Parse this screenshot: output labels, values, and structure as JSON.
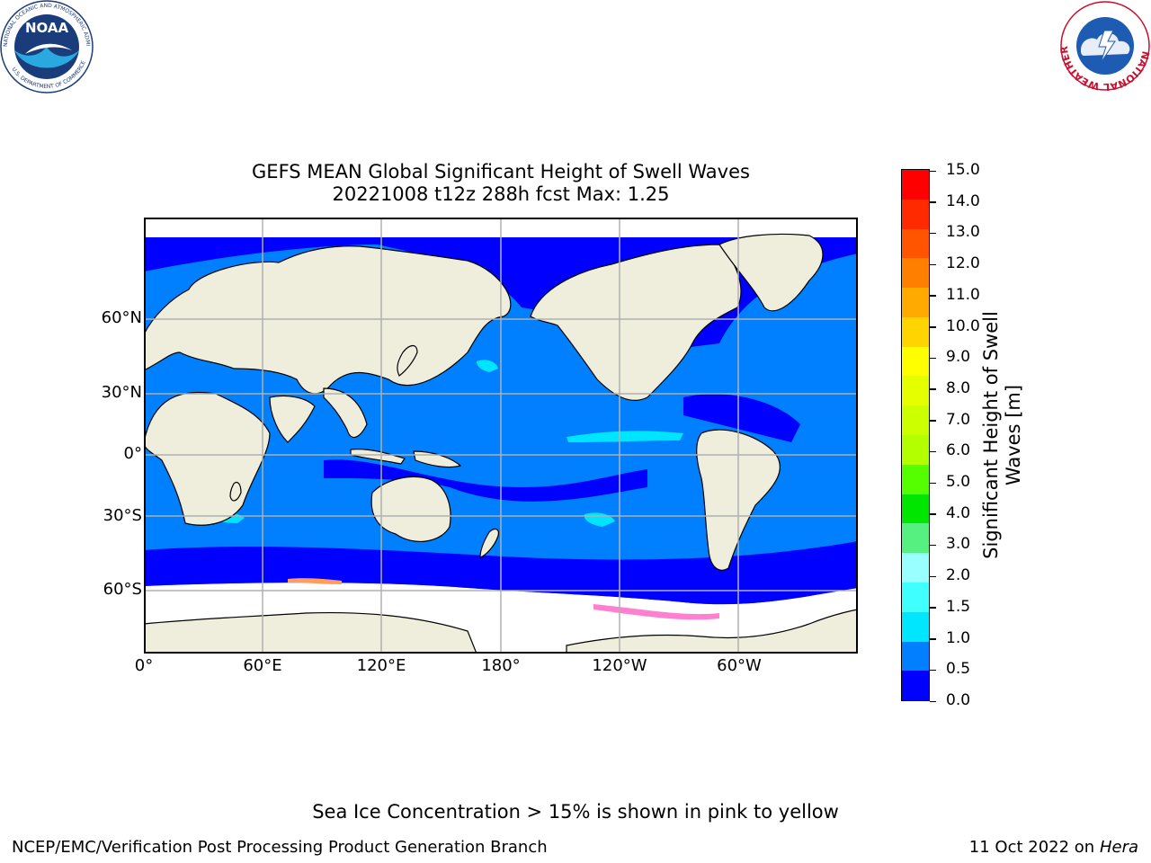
{
  "header": {
    "title_line1": "GEFS MEAN Global Significant Height of Swell Waves",
    "title_line2": "20221008 t12z 288h fcst   Max: 1.25"
  },
  "logos": {
    "noaa": {
      "ring_text": "NATIONAL OCEANIC AND ATMOSPHERIC ADMINISTRATION",
      "bottom_text": "U.S. DEPARTMENT OF COMMERCE",
      "center_text": "NOAA"
    },
    "nws": {
      "ring_text": "NATIONAL WEATHER SERVICE"
    }
  },
  "map": {
    "lat_ticks": [
      "60°N",
      "30°N",
      "0°",
      "30°S",
      "60°S"
    ],
    "lon_ticks": [
      "0°",
      "60°E",
      "120°E",
      "180°",
      "120°W",
      "60°W"
    ],
    "colors": {
      "land": "#efeedd",
      "ocean_low": "#0000ff",
      "ocean_mid": "#0080ff",
      "ocean_high": "#00e5ff",
      "ice": "#ff7fd0",
      "grid": "#b0b0b0"
    }
  },
  "colorbar": {
    "label_line1": "Significant Height of Swell",
    "label_line2": "Waves [m]",
    "ticks": [
      "15.0",
      "14.0",
      "13.0",
      "12.0",
      "11.0",
      "10.0",
      "9.0",
      "8.0",
      "7.0",
      "6.0",
      "5.0",
      "4.0",
      "3.0",
      "2.0",
      "1.5",
      "1.0",
      "0.5",
      "0.0"
    ],
    "bands_top_to_bottom": [
      "#ff0000",
      "#ff2a00",
      "#ff5500",
      "#ff8000",
      "#ffaa00",
      "#ffd400",
      "#ffff00",
      "#e6ff00",
      "#ccff00",
      "#b3ff00",
      "#55ff00",
      "#00e600",
      "#55f080",
      "#99ffff",
      "#40ffff",
      "#00e6ff",
      "#0080ff",
      "#0000ff"
    ]
  },
  "chart_data": {
    "type": "heatmap",
    "title": "GEFS MEAN Global Significant Height of Swell Waves",
    "subtitle": "20221008 t12z 288h fcst   Max: 1.25",
    "xlabel": "",
    "ylabel": "",
    "x_ticks": [
      "0°",
      "60°E",
      "120°E",
      "180°",
      "120°W",
      "60°W"
    ],
    "y_ticks": [
      "60°N",
      "30°N",
      "0°",
      "30°S",
      "60°S"
    ],
    "colorbar_label": "Significant Height of Swell Waves [m]",
    "colorbar_ticks": [
      0.0,
      0.5,
      1.0,
      1.5,
      2.0,
      3.0,
      4.0,
      5.0,
      6.0,
      7.0,
      8.0,
      9.0,
      10.0,
      11.0,
      12.0,
      13.0,
      14.0,
      15.0
    ],
    "max_value": 1.25,
    "grid": true
  },
  "footer": {
    "note": "Sea Ice Concentration > 15% is shown in pink to yellow",
    "left": "NCEP/EMC/Verification Post Processing Product Generation Branch",
    "right_date": "11 Oct 2022 on",
    "right_machine": "Hera"
  }
}
